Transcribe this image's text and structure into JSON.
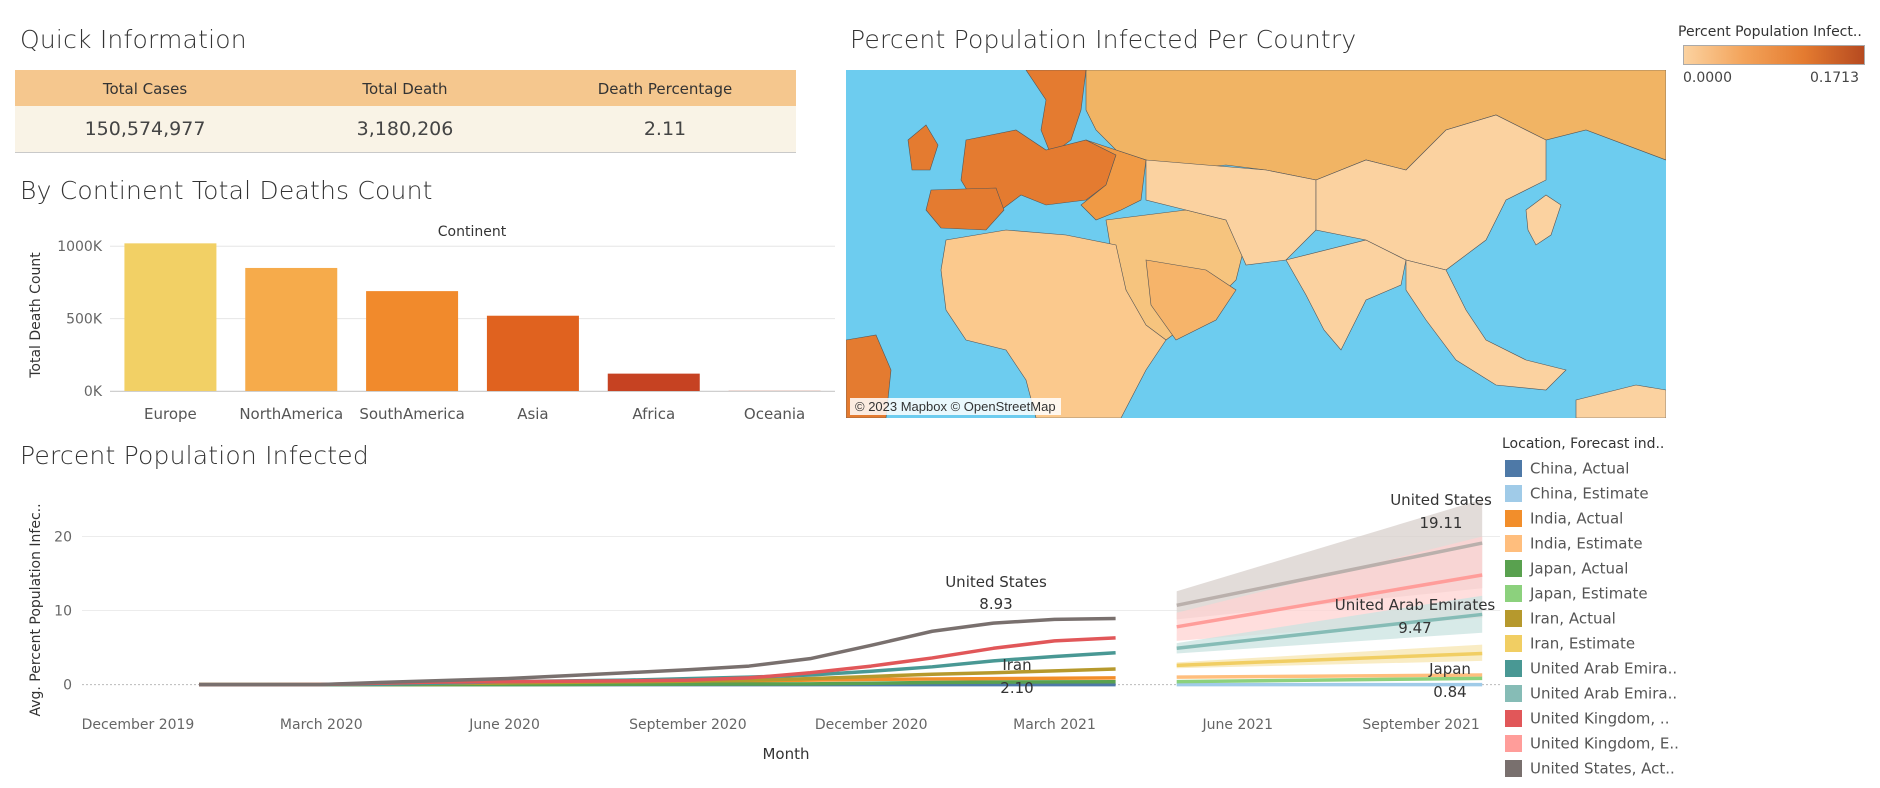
{
  "quick_info": {
    "title": "Quick Information",
    "headers": [
      "Total Cases",
      "Total Death",
      "Death Percentage"
    ],
    "values": [
      "150,574,977",
      "3,180,206",
      "2.11"
    ]
  },
  "continent_chart": {
    "title": "By Continent Total Deaths Count",
    "header": "Continent",
    "ylabel": "Total Death Count",
    "yticks": [
      "1000K",
      "500K",
      "0K"
    ]
  },
  "map": {
    "title": "Percent Population Infected Per Country",
    "credit": "© 2023 Mapbox © OpenStreetMap",
    "legend_title": "Percent Population Infect..",
    "legend_min": "0.0000",
    "legend_max": "0.1713",
    "colors": {
      "ocean": "#6dccef",
      "low": "#fbd2a0",
      "mid": "#f3a35a",
      "high": "#e47b30",
      "max": "#b64a20",
      "border": "#555555"
    }
  },
  "line_chart": {
    "title": "Percent Population Infected",
    "ylabel": "Avg. Percent Population Infec..",
    "xlabel": "Month",
    "yticks": [
      "20",
      "10",
      "0"
    ],
    "xticks": [
      "December 2019",
      "March 2020",
      "June 2020",
      "September 2020",
      "December 2020",
      "March 2021",
      "June 2021",
      "September 2021"
    ],
    "annotations": [
      {
        "name": "United States",
        "value": "8.93"
      },
      {
        "name": "Iran",
        "value": "2.10"
      },
      {
        "name": "United States",
        "value": "19.11"
      },
      {
        "name": "United Arab Emirates",
        "value": "9.47"
      },
      {
        "name": "Japan",
        "value": "0.84"
      }
    ]
  },
  "legend": {
    "title": "Location, Forecast ind..",
    "items": [
      {
        "label": "China, Actual",
        "color": "#4e79a7"
      },
      {
        "label": "China, Estimate",
        "color": "#a0cbe8"
      },
      {
        "label": "India, Actual",
        "color": "#f28e2b"
      },
      {
        "label": "India, Estimate",
        "color": "#ffbe7d"
      },
      {
        "label": "Japan, Actual",
        "color": "#59a14f"
      },
      {
        "label": "Japan, Estimate",
        "color": "#8cd17d"
      },
      {
        "label": "Iran, Actual",
        "color": "#b6992d"
      },
      {
        "label": "Iran, Estimate",
        "color": "#f1ce63"
      },
      {
        "label": "United Arab Emira..",
        "color": "#499894"
      },
      {
        "label": "United Arab Emira..",
        "color": "#86bcb6"
      },
      {
        "label": "United Kingdom, ..",
        "color": "#e15759"
      },
      {
        "label": "United Kingdom, E..",
        "color": "#ff9d9a"
      },
      {
        "label": "United States, Act..",
        "color": "#79706e"
      }
    ]
  },
  "chart_data": [
    {
      "type": "bar",
      "header": "Continent",
      "categories": [
        "Europe",
        "NorthAmerica",
        "SouthAmerica",
        "Asia",
        "Africa",
        "Oceania"
      ],
      "values": [
        1020000,
        850000,
        690000,
        520000,
        120000,
        1000
      ],
      "colors": [
        "#f2d065",
        "#f6ab4b",
        "#f18a2c",
        "#e0621f",
        "#c64222",
        "#c64222"
      ],
      "xlabel": "",
      "ylabel": "Total Death Count",
      "ylim": [
        0,
        1050000
      ],
      "yticks": [
        0,
        500000,
        1000000
      ],
      "grid": true
    },
    {
      "type": "line",
      "xlabel": "Month",
      "ylabel": "Avg. Percent Population Infec..",
      "ylim": [
        -1,
        26
      ],
      "yticks": [
        0,
        10,
        20
      ],
      "x_ticks": [
        "December 2019",
        "March 2020",
        "June 2020",
        "September 2020",
        "December 2020",
        "March 2021",
        "June 2021",
        "September 2021"
      ],
      "x_actual": [
        "Jan 2020",
        "Feb 2020",
        "Mar 2020",
        "Apr 2020",
        "May 2020",
        "Jun 2020",
        "Jul 2020",
        "Aug 2020",
        "Sep 2020",
        "Oct 2020",
        "Nov 2020",
        "Dec 2020",
        "Jan 2021",
        "Feb 2021",
        "Mar 2021",
        "Apr 2021"
      ],
      "x_estimate": [
        "May 2021",
        "Oct 2021"
      ],
      "series": [
        {
          "name": "China, Actual",
          "color": "#4e79a7",
          "values": [
            0,
            0,
            0,
            0,
            0,
            0,
            0,
            0,
            0,
            0,
            0,
            0,
            0,
            0,
            0,
            0
          ]
        },
        {
          "name": "India, Actual",
          "color": "#f28e2b",
          "values": [
            0,
            0,
            0,
            0,
            0,
            0.05,
            0.1,
            0.2,
            0.35,
            0.5,
            0.6,
            0.7,
            0.75,
            0.8,
            0.85,
            0.9
          ]
        },
        {
          "name": "Japan, Actual",
          "color": "#59a14f",
          "values": [
            0,
            0,
            0,
            0,
            0,
            0,
            0.02,
            0.05,
            0.06,
            0.08,
            0.1,
            0.18,
            0.28,
            0.34,
            0.36,
            0.38
          ]
        },
        {
          "name": "Iran, Actual",
          "color": "#b6992d",
          "values": [
            0,
            0,
            0.01,
            0.08,
            0.15,
            0.22,
            0.3,
            0.38,
            0.45,
            0.6,
            0.8,
            1.1,
            1.4,
            1.6,
            1.85,
            2.1
          ]
        },
        {
          "name": "United Arab Emira..",
          "color": "#499894",
          "values": [
            0,
            0,
            0,
            0.05,
            0.2,
            0.4,
            0.5,
            0.6,
            0.8,
            1.0,
            1.3,
            1.8,
            2.4,
            3.2,
            3.8,
            4.3
          ]
        },
        {
          "name": "United Kingdom, ..",
          "color": "#e15759",
          "values": [
            0,
            0,
            0.01,
            0.2,
            0.35,
            0.4,
            0.45,
            0.5,
            0.6,
            0.9,
            1.6,
            2.5,
            3.6,
            4.9,
            5.9,
            6.3
          ]
        },
        {
          "name": "United States, Act..",
          "color": "#79706e",
          "values": [
            0,
            0,
            0.02,
            0.3,
            0.55,
            0.8,
            1.2,
            1.6,
            2.0,
            2.5,
            3.5,
            5.3,
            7.2,
            8.3,
            8.8,
            8.93
          ]
        },
        {
          "name": "China, Estimate",
          "color": "#a0cbe8",
          "values": [
            0,
            0
          ]
        },
        {
          "name": "India, Estimate",
          "color": "#ffbe7d",
          "values": [
            1.0,
            1.3
          ]
        },
        {
          "name": "Japan, Estimate",
          "color": "#8cd17d",
          "values": [
            0.4,
            0.84
          ]
        },
        {
          "name": "Iran, Estimate",
          "color": "#f1ce63",
          "values": [
            2.6,
            4.2
          ]
        },
        {
          "name": "United Arab Emira..",
          "color": "#86bcb6",
          "values": [
            4.9,
            9.47
          ]
        },
        {
          "name": "United Kingdom, E..",
          "color": "#ff9d9a",
          "values": [
            7.8,
            14.8
          ]
        },
        {
          "name": "United States, Est",
          "color": "#bab0ac",
          "values": [
            10.7,
            19.11
          ]
        }
      ],
      "bands": [
        {
          "series": "United States, Est",
          "color": "#d8d0cc",
          "low": [
            8.8,
            13.0
          ],
          "high": [
            12.6,
            25.0
          ]
        },
        {
          "series": "United Kingdom, E..",
          "color": "#ffd3d2",
          "low": [
            5.9,
            9.0
          ],
          "high": [
            9.7,
            20.0
          ]
        },
        {
          "series": "United Arab Emira..",
          "color": "#c9e3e0",
          "low": [
            4.2,
            7.0
          ],
          "high": [
            5.6,
            12.0
          ]
        },
        {
          "series": "Iran, Estimate",
          "color": "#f7e6b0",
          "low": [
            2.2,
            3.2
          ],
          "high": [
            3.0,
            5.4
          ]
        }
      ]
    }
  ]
}
